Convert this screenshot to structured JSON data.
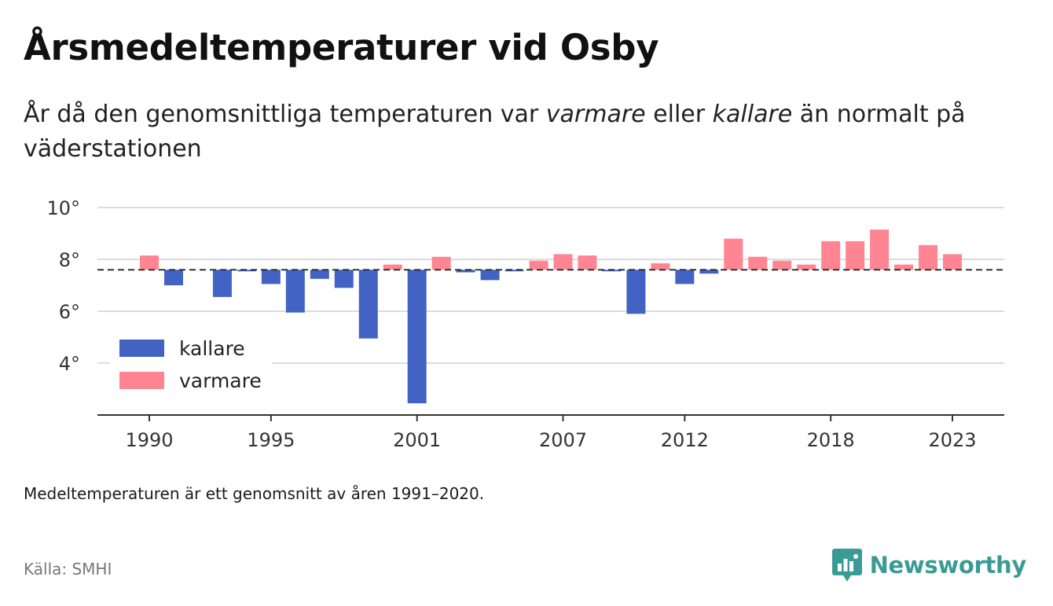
{
  "title": "Årsmedeltemperaturer vid Osby",
  "subtitle": {
    "part1": "År då den genomsnittliga temperaturen var ",
    "warmer_word": "varmare",
    "part2": " eller ",
    "colder_word": "kallare",
    "part3": " än normalt på väderstationen"
  },
  "note": "Medeltemperaturen är ett genomsnitt av åren 1991–2020.",
  "source": "Källa: SMHI",
  "brand": {
    "name": "Newsworthy",
    "icon": "newsworthy-logo-icon",
    "color": "#3a9b95"
  },
  "chart_data": {
    "type": "bar",
    "baseline": 7.6,
    "baseline_style": "dashed",
    "ylim": [
      2,
      10
    ],
    "yticks": [
      4,
      6,
      8,
      10
    ],
    "ytick_labels": [
      "4°",
      "6°",
      "8°",
      "10°"
    ],
    "xticks": [
      1990,
      1995,
      2001,
      2007,
      2012,
      2018,
      2023
    ],
    "xtick_labels": [
      "1990",
      "1995",
      "2001",
      "2007",
      "2012",
      "2018",
      "2023"
    ],
    "grid": true,
    "legend": {
      "placement": "bottom-left",
      "entries": [
        {
          "label": "kallare",
          "color": "#4263c4"
        },
        {
          "label": "varmare",
          "color": "#ff8592"
        }
      ]
    },
    "colors": {
      "colder": "#4263c4",
      "warmer": "#ff8592"
    },
    "x": [
      1990,
      1991,
      1992,
      1993,
      1994,
      1995,
      1996,
      1997,
      1998,
      1999,
      2000,
      2001,
      2002,
      2003,
      2004,
      2005,
      2006,
      2007,
      2008,
      2009,
      2010,
      2011,
      2012,
      2013,
      2014,
      2015,
      2016,
      2017,
      2018,
      2019,
      2020,
      2021,
      2022,
      2023
    ],
    "values": [
      8.15,
      7.0,
      null,
      6.55,
      7.55,
      7.05,
      5.95,
      7.25,
      6.9,
      4.95,
      7.8,
      2.45,
      8.1,
      7.5,
      7.2,
      7.55,
      7.95,
      8.2,
      8.15,
      7.55,
      5.9,
      7.85,
      7.05,
      7.45,
      8.8,
      8.1,
      7.95,
      7.8,
      8.7,
      8.7,
      9.15,
      7.8,
      8.55,
      8.2
    ]
  }
}
